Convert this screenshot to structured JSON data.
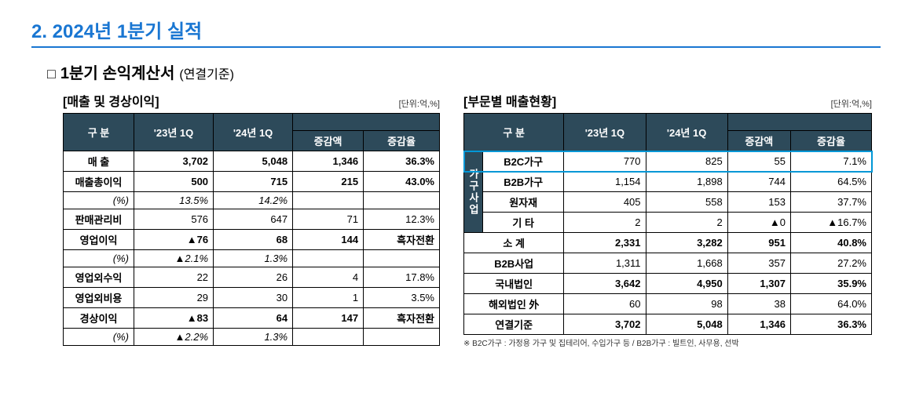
{
  "section": {
    "title": "2. 2024년 1분기 실적",
    "subtitle_bullet": "□",
    "subtitle": "1분기 손익계산서",
    "subtitle_note": "(연결기준)"
  },
  "left_table": {
    "title": "[매출 및 경상이익]",
    "unit": "[단위:억,%]",
    "headers": {
      "category": "구   분",
      "col1": "'23년 1Q",
      "col2": "'24년 1Q",
      "col3": "증감액",
      "col4": "증감율"
    },
    "rows": [
      {
        "label": "매    출",
        "c1": "3,702",
        "c2": "5,048",
        "c3": "1,346",
        "c4": "36.3%",
        "bold": true
      },
      {
        "label": "매출총이익",
        "c1": "500",
        "c2": "715",
        "c3": "215",
        "c4": "43.0%",
        "bold": true
      },
      {
        "label": "(%)",
        "c1": "13.5%",
        "c2": "14.2%",
        "c3": "",
        "c4": "",
        "italic": true
      },
      {
        "label": "판매관리비",
        "c1": "576",
        "c2": "647",
        "c3": "71",
        "c4": "12.3%"
      },
      {
        "label": "영업이익",
        "c1": "▲76",
        "c2": "68",
        "c3": "144",
        "c4": "흑자전환",
        "bold": true
      },
      {
        "label": "(%)",
        "c1": "▲2.1%",
        "c2": "1.3%",
        "c3": "",
        "c4": "",
        "italic": true
      },
      {
        "label": "영업외수익",
        "c1": "22",
        "c2": "26",
        "c3": "4",
        "c4": "17.8%"
      },
      {
        "label": "영업외비용",
        "c1": "29",
        "c2": "30",
        "c3": "1",
        "c4": "3.5%"
      },
      {
        "label": "경상이익",
        "c1": "▲83",
        "c2": "64",
        "c3": "147",
        "c4": "흑자전환",
        "bold": true
      },
      {
        "label": "(%)",
        "c1": "▲2.2%",
        "c2": "1.3%",
        "c3": "",
        "c4": "",
        "italic": true
      }
    ]
  },
  "right_table": {
    "title": "[부문별 매출현황]",
    "unit": "[단위:억,%]",
    "headers": {
      "category": "구   분",
      "col1": "'23년 1Q",
      "col2": "'24년 1Q",
      "col3": "증감액",
      "col4": "증감율"
    },
    "vertical_label": "가구사업",
    "group_rows": [
      {
        "label": "B2C가구",
        "c1": "770",
        "c2": "825",
        "c3": "55",
        "c4": "7.1%"
      },
      {
        "label": "B2B가구",
        "c1": "1,154",
        "c2": "1,898",
        "c3": "744",
        "c4": "64.5%"
      },
      {
        "label": "원자재",
        "c1": "405",
        "c2": "558",
        "c3": "153",
        "c4": "37.7%"
      },
      {
        "label": "기   타",
        "c1": "2",
        "c2": "2",
        "c3": "▲0",
        "c4": "▲16.7%"
      }
    ],
    "subtotal": {
      "label": "소    계",
      "c1": "2,331",
      "c2": "3,282",
      "c3": "951",
      "c4": "40.8%"
    },
    "body_rows": [
      {
        "label": "B2B사업",
        "c1": "1,311",
        "c2": "1,668",
        "c3": "357",
        "c4": "27.2%"
      },
      {
        "label": "국내법인",
        "c1": "3,642",
        "c2": "4,950",
        "c3": "1,307",
        "c4": "35.9%",
        "bold": true
      }
    ],
    "tail_rows": [
      {
        "label": "해외법인 外",
        "c1": "60",
        "c2": "98",
        "c3": "38",
        "c4": "64.0%"
      },
      {
        "label": "연결기준",
        "c1": "3,702",
        "c2": "5,048",
        "c3": "1,346",
        "c4": "36.3%",
        "bold": true
      }
    ],
    "footnote": "※ B2C가구 : 가정용 가구 및 집테리어, 수입가구 등 / B2B가구 : 빌트인, 사무용, 선박"
  },
  "colors": {
    "header_bg": "#2d4a5a",
    "accent": "#1976d2",
    "highlight": "#0097d6"
  }
}
